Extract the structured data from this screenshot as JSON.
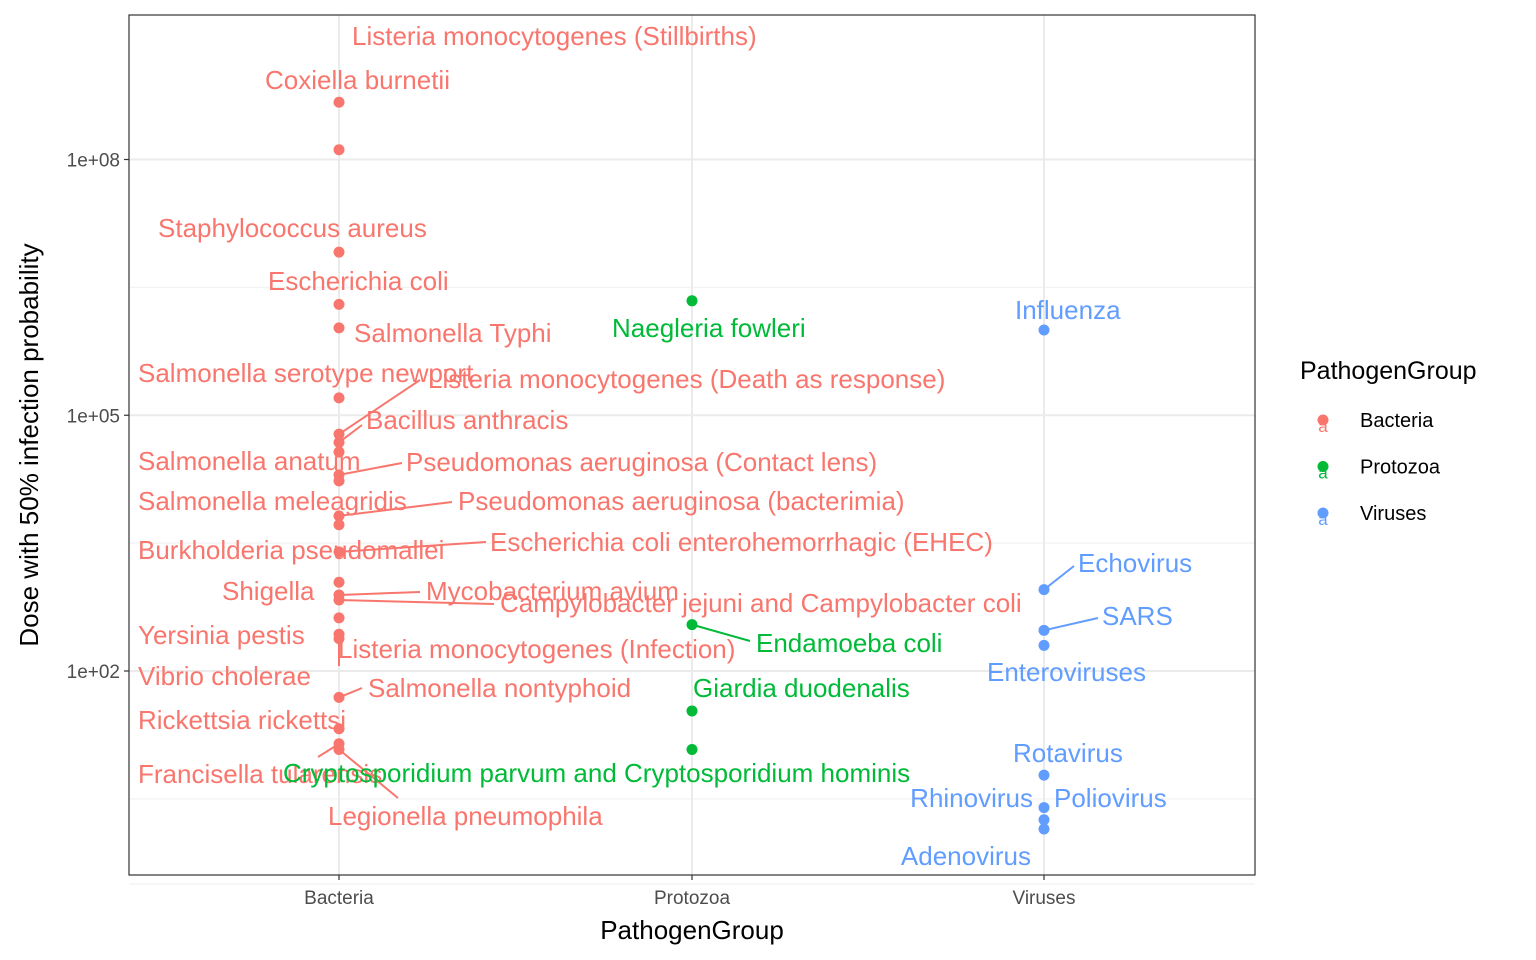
{
  "chart_data": {
    "type": "scatter",
    "xlabel": "PathogenGroup",
    "ylabel": "Dose with 50% infection probability",
    "categories": [
      "Bacteria",
      "Protozoa",
      "Viruses"
    ],
    "y_scale": "log10",
    "y_ticks": [
      {
        "value": 100,
        "label": "1e+02"
      },
      {
        "value": 100000,
        "label": "1e+05"
      },
      {
        "value": 100000000,
        "label": "1e+08"
      }
    ],
    "grid": true,
    "legend": {
      "title": "PathogenGroup",
      "position": "right",
      "entries": [
        {
          "name": "Bacteria",
          "color": "#F8766D"
        },
        {
          "name": "Protozoa",
          "color": "#00BA38"
        },
        {
          "name": "Viruses",
          "color": "#619CFF"
        }
      ],
      "glyph": "a"
    },
    "colors": {
      "Bacteria": "#F8766D",
      "Protozoa": "#00BA38",
      "Viruses": "#619CFF"
    },
    "points": [
      {
        "group": "Bacteria",
        "name": "Listeria monocytogenes (Stillbirths)",
        "y": 470000000
      },
      {
        "group": "Bacteria",
        "name": "Coxiella burnetii",
        "y": 130000000
      },
      {
        "group": "Bacteria",
        "name": "Staphylococcus aureus",
        "y": 8200000
      },
      {
        "group": "Bacteria",
        "name": "Escherichia coli",
        "y": 2000000
      },
      {
        "group": "Bacteria",
        "name": "Salmonella Typhi",
        "y": 1060000
      },
      {
        "group": "Bacteria",
        "name": "Salmonella serotype newport",
        "y": 160000
      },
      {
        "group": "Bacteria",
        "name": "Listeria monocytogenes (Death as response)",
        "y": 60000
      },
      {
        "group": "Bacteria",
        "name": "Bacillus anthracis",
        "y": 48000
      },
      {
        "group": "Bacteria",
        "name": "Salmonella anatum",
        "y": 37000
      },
      {
        "group": "Bacteria",
        "name": "Pseudomonas aeruginosa (Contact lens)",
        "y": 20000
      },
      {
        "group": "Bacteria",
        "name": "Salmonella meleagridis",
        "y": 17000
      },
      {
        "group": "Bacteria",
        "name": "Pseudomonas aeruginosa (bacterimia)",
        "y": 6600
      },
      {
        "group": "Bacteria",
        "name": "Burkholderia pseudomallei",
        "y": 5200
      },
      {
        "group": "Bacteria",
        "name": "Escherichia coli enterohemorrhagic (EHEC)",
        "y": 2500
      },
      {
        "group": "Bacteria",
        "name": "Shigella",
        "y": 1100
      },
      {
        "group": "Bacteria",
        "name": "Mycobacterium avium",
        "y": 780
      },
      {
        "group": "Bacteria",
        "name": "Campylobacter jejuni and Campylobacter coli",
        "y": 680
      },
      {
        "group": "Bacteria",
        "name": "Yersinia pestis",
        "y": 420
      },
      {
        "group": "Bacteria",
        "name": "Listeria monocytogenes (Infection)",
        "y": 270
      },
      {
        "group": "Bacteria",
        "name": "Vibrio cholerae",
        "y": 240
      },
      {
        "group": "Bacteria",
        "name": "Salmonella nontyphoid",
        "y": 49
      },
      {
        "group": "Bacteria",
        "name": "Rickettsia rickettsi",
        "y": 21
      },
      {
        "group": "Bacteria",
        "name": "Francisella tularensis",
        "y": 14
      },
      {
        "group": "Bacteria",
        "name": "Legionella pneumophila",
        "y": 12
      },
      {
        "group": "Protozoa",
        "name": "Naegleria fowleri",
        "y": 2200000
      },
      {
        "group": "Protozoa",
        "name": "Endamoeba coli",
        "y": 350
      },
      {
        "group": "Protozoa",
        "name": "Giardia duodenalis",
        "y": 34
      },
      {
        "group": "Protozoa",
        "name": "Cryptosporidium parvum and Cryptosporidium hominis",
        "y": 12
      },
      {
        "group": "Viruses",
        "name": "Influenza",
        "y": 1000000
      },
      {
        "group": "Viruses",
        "name": "Echovirus",
        "y": 900
      },
      {
        "group": "Viruses",
        "name": "SARS",
        "y": 300
      },
      {
        "group": "Viruses",
        "name": "Enteroviruses",
        "y": 200
      },
      {
        "group": "Viruses",
        "name": "Rotavirus",
        "y": 6
      },
      {
        "group": "Viruses",
        "name": "Poliovirus",
        "y": 2.5
      },
      {
        "group": "Viruses",
        "name": "Rhinovirus",
        "y": 1.8
      },
      {
        "group": "Viruses",
        "name": "Adenovirus",
        "y": 1.4
      }
    ]
  }
}
